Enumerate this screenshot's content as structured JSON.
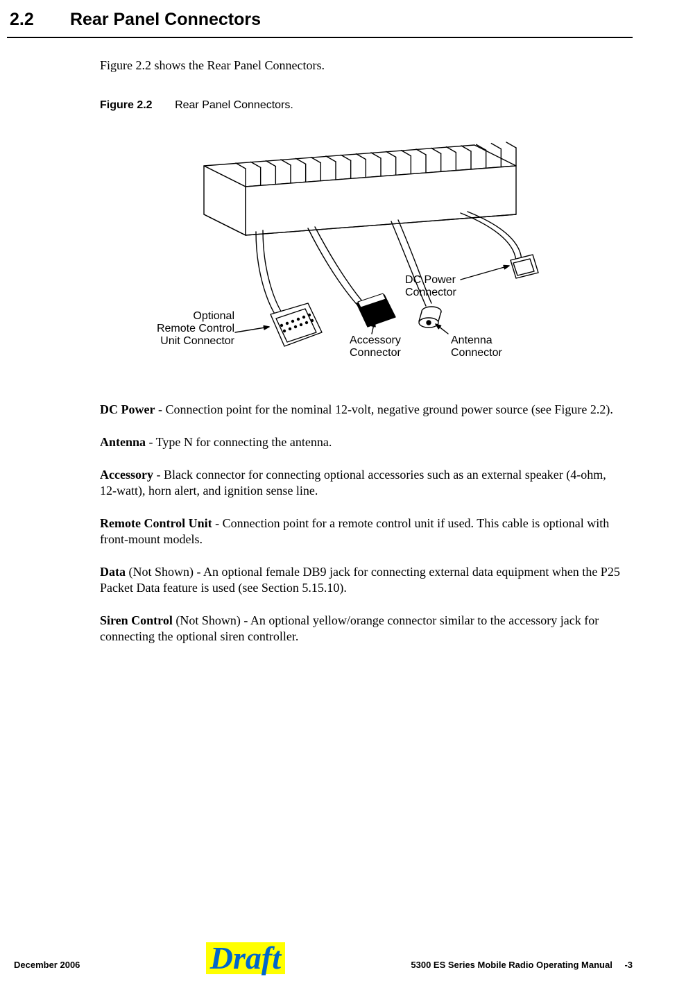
{
  "section": {
    "number": "2.2",
    "title": "Rear Panel Connectors"
  },
  "intro": "Figure 2.2 shows the Rear Panel Connectors.",
  "figure": {
    "label": "Figure 2.2",
    "title": "Rear Panel Connectors.",
    "callouts": {
      "dc_power": "DC Power\nConnector",
      "antenna": "Antenna\nConnector",
      "accessory": "Accessory\nConnector",
      "remote": "Optional\nRemote Control\nUnit Connector"
    },
    "svg": {
      "stroke": "#000000",
      "fill": "#ffffff",
      "heatsink_fins": 19,
      "arrow_size": 8
    }
  },
  "definitions": [
    {
      "term": "DC Power",
      "text": " - Connection point for the nominal 12-volt, negative ground power source (see Figure 2.2)."
    },
    {
      "term": "Antenna",
      "text": " - Type N for connecting the antenna."
    },
    {
      "term": "Accessory",
      "text": " - Black connector for connecting optional accessories such as an external speaker (4-ohm, 12-watt), horn alert, and ignition sense line."
    },
    {
      "term": "Remote Control Unit",
      "text": " - Connection point for a remote control unit if used. This cable is optional with front-mount models."
    },
    {
      "term": "Data",
      "note": " (Not Shown)",
      "text": " - An optional female DB9 jack for connecting external data equipment when the P25 Packet Data feature is used (see Section 5.15.10)."
    },
    {
      "term": "Siren Control",
      "note": " (Not Shown)",
      "text": " - An optional yellow/orange connector similar to the accessory jack for connecting the optional siren controller."
    }
  ],
  "footer": {
    "left": "December 2006",
    "draft": "Draft",
    "manual": "5300 ES Series Mobile Radio Operating Manual",
    "page": "-3"
  },
  "colors": {
    "text": "#000000",
    "background": "#ffffff",
    "draft_bg": "#ffff00",
    "draft_fg": "#0066cc"
  }
}
